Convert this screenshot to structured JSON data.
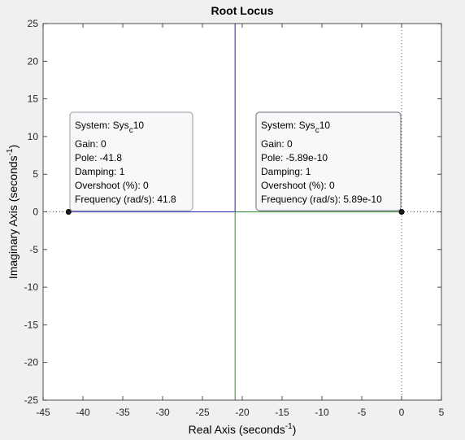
{
  "chart_data": {
    "type": "line",
    "title": "Root Locus",
    "xlabel": {
      "main": "Real Axis (seconds",
      "sup": "-1",
      "close": ")"
    },
    "ylabel": {
      "main": "Imaginary Axis (seconds",
      "sup": "-1",
      "close": ")"
    },
    "xlim": [
      -45,
      5
    ],
    "ylim": [
      -25,
      25
    ],
    "xticks": [
      -45,
      -40,
      -35,
      -30,
      -25,
      -20,
      -15,
      -10,
      -5,
      0,
      5
    ],
    "yticks": [
      -25,
      -20,
      -15,
      -10,
      -5,
      0,
      5,
      10,
      15,
      20,
      25
    ],
    "series": [
      {
        "color": "#1f1fb4",
        "segments": [
          [
            [
              -41.8,
              0
            ],
            [
              -20.9,
              0
            ]
          ],
          [
            [
              -20.9,
              0
            ],
            [
              -20.9,
              25
            ]
          ]
        ]
      },
      {
        "color": "#2c8a2c",
        "segments": [
          [
            [
              0,
              0
            ],
            [
              -20.9,
              0
            ]
          ],
          [
            [
              -20.9,
              0
            ],
            [
              -20.9,
              -25
            ]
          ]
        ]
      }
    ],
    "poles": [
      {
        "x": -41.8,
        "y": 0
      },
      {
        "x": 0,
        "y": 0
      }
    ],
    "reference_lines": {
      "x": 0,
      "y": 0,
      "style": "dotted"
    },
    "datatips": [
      {
        "system_prefix": "System: Sys",
        "system_sub": "c",
        "system_suffix": "10",
        "lines": [
          "Gain: 0",
          "Pole: -41.8",
          "Damping: 1",
          "Overshoot (%): 0",
          "Frequency (rad/s): 41.8"
        ]
      },
      {
        "system_prefix": "System: Sys",
        "system_sub": "c",
        "system_suffix": "10",
        "lines": [
          "Gain: 0",
          "Pole: -5.89e-10",
          "Damping: 1",
          "Overshoot (%): 0",
          "Frequency (rad/s): 5.89e-10"
        ]
      }
    ],
    "colors": {
      "background": "#f0f0f0",
      "plot_area": "#ffffff",
      "axes": "#262626",
      "tip_border": "#9a9aa2",
      "tip_fill": "#f8f8fb"
    }
  }
}
